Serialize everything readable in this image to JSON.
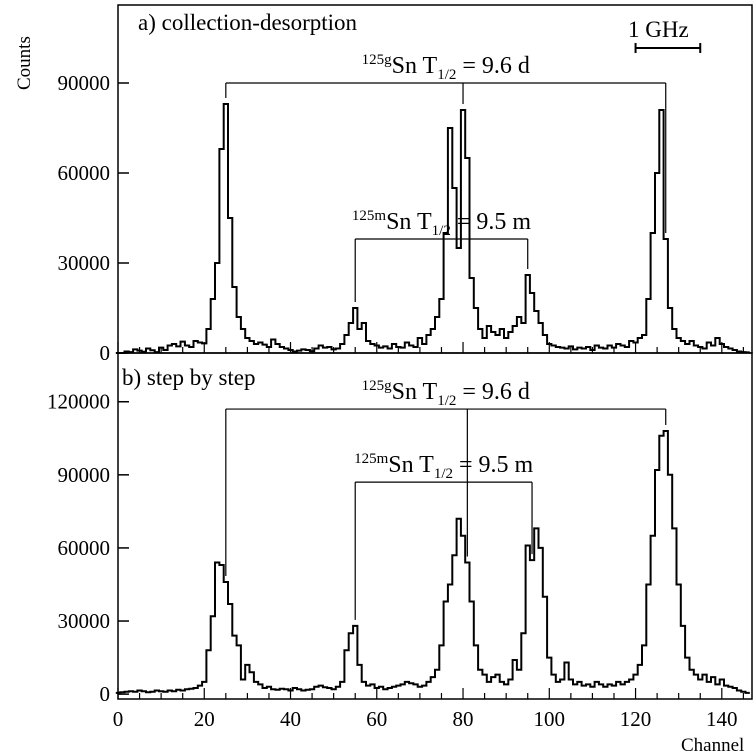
{
  "chart_data": [
    {
      "type": "line",
      "step": true,
      "panel": "top",
      "title": "a) collection-desorption",
      "xlim": [
        0,
        147
      ],
      "ylim": [
        0,
        116000
      ],
      "yticks": [
        0,
        30000,
        60000,
        90000
      ],
      "ylabel": "Counts",
      "scale_bar": "1 GHz",
      "scale_bar_channels": [
        120,
        135
      ],
      "groups": [
        {
          "label_mass": "125g",
          "label_elem": "Sn T",
          "label_sub": "1/2",
          "label_rest": " = 9.6 d",
          "peaks": [
            25,
            80,
            127
          ],
          "bracket_y": 90000
        },
        {
          "label_mass": "125m",
          "label_elem": "Sn T",
          "label_sub": "1/2",
          "label_rest": " = 9.5 m",
          "peaks": [
            55,
            95
          ],
          "bracket_y": 38000
        }
      ],
      "x": [
        0,
        1,
        2,
        3,
        4,
        5,
        6,
        7,
        8,
        9,
        10,
        11,
        12,
        13,
        14,
        15,
        16,
        17,
        18,
        19,
        20,
        21,
        22,
        23,
        24,
        25,
        26,
        27,
        28,
        29,
        30,
        31,
        32,
        33,
        34,
        35,
        36,
        37,
        38,
        39,
        40,
        41,
        42,
        43,
        44,
        45,
        46,
        47,
        48,
        49,
        50,
        51,
        52,
        53,
        54,
        55,
        56,
        57,
        58,
        59,
        60,
        61,
        62,
        63,
        64,
        65,
        66,
        67,
        68,
        69,
        70,
        71,
        72,
        73,
        74,
        75,
        76,
        77,
        78,
        79,
        80,
        81,
        82,
        83,
        84,
        85,
        86,
        87,
        88,
        89,
        90,
        91,
        92,
        93,
        94,
        95,
        96,
        97,
        98,
        99,
        100,
        101,
        102,
        103,
        104,
        105,
        106,
        107,
        108,
        109,
        110,
        111,
        112,
        113,
        114,
        115,
        116,
        117,
        118,
        119,
        120,
        121,
        122,
        123,
        124,
        125,
        126,
        127,
        128,
        129,
        130,
        131,
        132,
        133,
        134,
        135,
        136,
        137,
        138,
        139,
        140,
        141,
        142,
        143,
        144,
        145,
        146
      ],
      "values": [
        0,
        0,
        500,
        300,
        1200,
        800,
        400,
        1500,
        900,
        300,
        1800,
        1000,
        2500,
        3000,
        2200,
        3800,
        2500,
        2000,
        4000,
        3500,
        3200,
        8000,
        18000,
        30000,
        68000,
        83000,
        45000,
        22000,
        12000,
        8000,
        5000,
        4000,
        3000,
        3500,
        2800,
        2000,
        4500,
        3000,
        2000,
        1500,
        1000,
        500,
        800,
        1200,
        1000,
        600,
        1500,
        2500,
        1800,
        2000,
        1200,
        1500,
        3000,
        6000,
        10000,
        15000,
        8000,
        10000,
        4000,
        3000,
        2500,
        1800,
        2200,
        1500,
        3000,
        2000,
        1800,
        3500,
        2500,
        2000,
        5000,
        3000,
        6000,
        8000,
        12000,
        18000,
        40000,
        75000,
        55000,
        35000,
        81000,
        65000,
        25000,
        15000,
        8000,
        5000,
        9000,
        7000,
        6000,
        8000,
        5000,
        7000,
        9000,
        12000,
        10000,
        26000,
        20000,
        14000,
        10000,
        6000,
        3000,
        2500,
        2000,
        1800,
        1500,
        2200,
        1200,
        1800,
        1500,
        2000,
        1000,
        2500,
        1800,
        1500,
        2500,
        1800,
        3000,
        2500,
        2000,
        4000,
        3500,
        5000,
        6000,
        18000,
        40000,
        60000,
        81000,
        38000,
        15000,
        8000,
        5000,
        4000,
        3000,
        4000,
        2500,
        2000,
        1500,
        3500,
        2500,
        5000,
        3000,
        2000,
        1500,
        1000,
        500,
        300,
        200
      ]
    },
    {
      "type": "line",
      "step": true,
      "panel": "bottom",
      "title": "b) step by step",
      "xlim": [
        0,
        147
      ],
      "ylim": [
        -2000,
        140000
      ],
      "yticks": [
        0,
        30000,
        60000,
        90000,
        120000
      ],
      "xticks": [
        0,
        20,
        40,
        60,
        80,
        100,
        120,
        140
      ],
      "xlabel": "Channel",
      "groups": [
        {
          "label_mass": "125g",
          "label_elem": "Sn T",
          "label_sub": "1/2",
          "label_rest": " = 9.6 d",
          "peaks": [
            25,
            81,
            127
          ],
          "bracket_y": 117000
        },
        {
          "label_mass": "125m",
          "label_elem": "Sn T",
          "label_sub": "1/2",
          "label_rest": " = 9.5 m",
          "peaks": [
            55,
            96
          ],
          "bracket_y": 87000
        }
      ],
      "x": [
        0,
        1,
        2,
        3,
        4,
        5,
        6,
        7,
        8,
        9,
        10,
        11,
        12,
        13,
        14,
        15,
        16,
        17,
        18,
        19,
        20,
        21,
        22,
        23,
        24,
        25,
        26,
        27,
        28,
        29,
        30,
        31,
        32,
        33,
        34,
        35,
        36,
        37,
        38,
        39,
        40,
        41,
        42,
        43,
        44,
        45,
        46,
        47,
        48,
        49,
        50,
        51,
        52,
        53,
        54,
        55,
        56,
        57,
        58,
        59,
        60,
        61,
        62,
        63,
        64,
        65,
        66,
        67,
        68,
        69,
        70,
        71,
        72,
        73,
        74,
        75,
        76,
        77,
        78,
        79,
        80,
        81,
        82,
        83,
        84,
        85,
        86,
        87,
        88,
        89,
        90,
        91,
        92,
        93,
        94,
        95,
        96,
        97,
        98,
        99,
        100,
        101,
        102,
        103,
        104,
        105,
        106,
        107,
        108,
        109,
        110,
        111,
        112,
        113,
        114,
        115,
        116,
        117,
        118,
        119,
        120,
        121,
        122,
        123,
        124,
        125,
        126,
        127,
        128,
        129,
        130,
        131,
        132,
        133,
        134,
        135,
        136,
        137,
        138,
        139,
        140,
        141,
        142,
        143,
        144,
        145,
        146
      ],
      "values": [
        500,
        800,
        1000,
        1200,
        1000,
        1500,
        1200,
        800,
        1000,
        1500,
        1200,
        1000,
        1500,
        1200,
        1800,
        1500,
        2000,
        2200,
        2500,
        3500,
        5000,
        18000,
        32000,
        54000,
        53000,
        46000,
        37000,
        24000,
        20000,
        6000,
        12000,
        9000,
        5000,
        4000,
        2500,
        3000,
        2000,
        1800,
        2200,
        2000,
        1500,
        2500,
        2000,
        1500,
        1800,
        2000,
        3000,
        3500,
        2800,
        2500,
        2000,
        3000,
        5000,
        18000,
        25000,
        28000,
        12000,
        5000,
        3500,
        4000,
        2500,
        3000,
        2000,
        2500,
        3000,
        3500,
        4000,
        5000,
        4500,
        4000,
        3000,
        3500,
        5000,
        7000,
        10000,
        20000,
        38000,
        45000,
        57000,
        72000,
        65000,
        54000,
        38000,
        20000,
        10000,
        8000,
        5000,
        7000,
        8000,
        5000,
        4000,
        6000,
        14000,
        10000,
        25000,
        61000,
        55000,
        68000,
        60000,
        40000,
        15000,
        8000,
        5000,
        6000,
        13000,
        6000,
        4000,
        5000,
        3500,
        4000,
        3000,
        5000,
        4000,
        3000,
        4000,
        3500,
        5000,
        4000,
        5000,
        6000,
        8000,
        12000,
        20000,
        45000,
        65000,
        92000,
        106000,
        108000,
        90000,
        68000,
        45000,
        28000,
        15000,
        10000,
        8000,
        6000,
        8000,
        5000,
        7000,
        4000,
        6000,
        3500,
        3000,
        2500,
        1500,
        1000,
        500
      ]
    }
  ]
}
